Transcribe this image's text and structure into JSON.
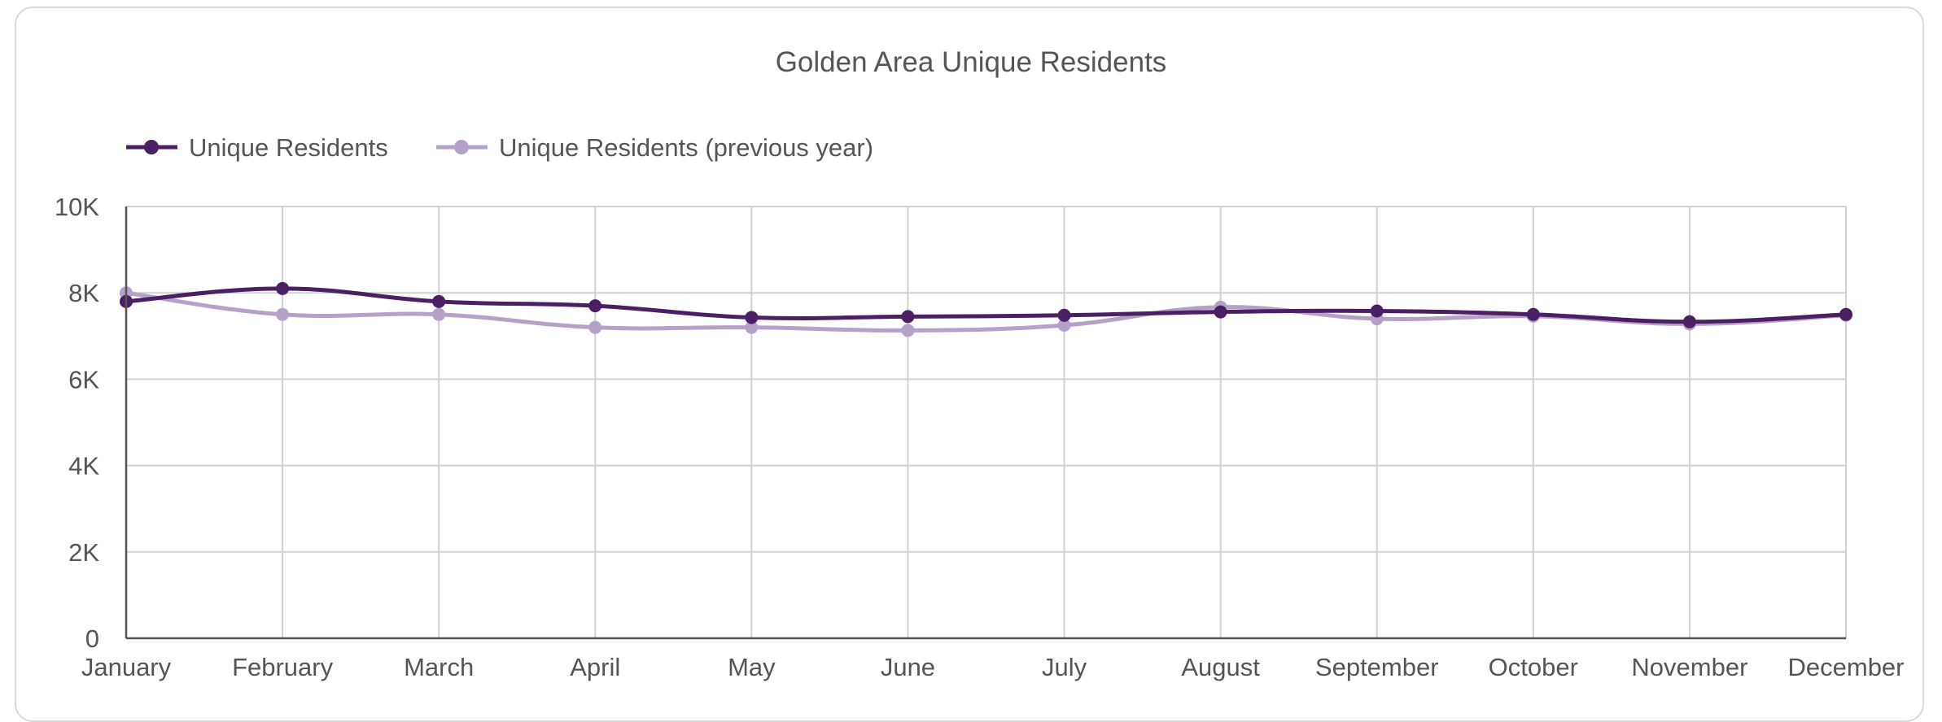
{
  "chart_data": {
    "type": "line",
    "title": "Golden Area Unique Residents",
    "categories": [
      "January",
      "February",
      "March",
      "April",
      "May",
      "June",
      "July",
      "August",
      "September",
      "October",
      "November",
      "December"
    ],
    "series": [
      {
        "name": "Unique Residents",
        "color": "#4a1f63",
        "values": [
          7800,
          8100,
          7800,
          7700,
          7430,
          7450,
          7480,
          7560,
          7580,
          7500,
          7330,
          7500
        ]
      },
      {
        "name": "Unique Residents (previous year)",
        "color": "#b5a1c8",
        "values": [
          8000,
          7500,
          7500,
          7200,
          7200,
          7130,
          7250,
          7670,
          7400,
          7460,
          7280,
          7480
        ]
      }
    ],
    "y_ticks": [
      "0",
      "2K",
      "4K",
      "6K",
      "8K",
      "10K"
    ],
    "ylim": [
      0,
      10000
    ],
    "xlabel": "",
    "ylabel": "",
    "grid": true,
    "legend_position": "top-left"
  }
}
